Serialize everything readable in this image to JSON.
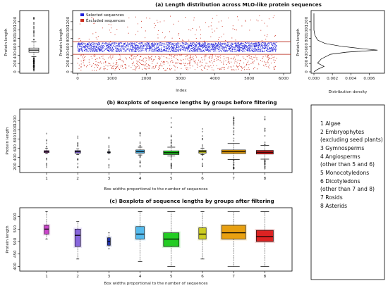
{
  "chart_data": [
    {
      "type": "boxplot",
      "panel": "a-left",
      "ylabel": "Protein length",
      "yticks": [
        0,
        200,
        400,
        600,
        800,
        1000,
        1200
      ],
      "ylim": [
        0,
        1400
      ],
      "box": {
        "whislo": 360,
        "q1": 470,
        "med": 520,
        "q3": 570,
        "whishi": 720
      }
    },
    {
      "type": "scatter",
      "panel": "a-center",
      "title": "(a) Length distribution across MLO-like protein sequences",
      "xlabel": "Index",
      "ylabel": "Protein length",
      "xticks": [
        0,
        1000,
        2000,
        3000,
        4000,
        5000,
        6000
      ],
      "yticks": [
        0,
        200,
        400,
        600,
        800,
        1000,
        1200
      ],
      "xlim": [
        0,
        6000
      ],
      "ylim": [
        0,
        1400
      ],
      "n_points": 5800,
      "legend_position": "top-left",
      "series": [
        {
          "name": "Selected sequences",
          "color": "#1f1fd8",
          "y_range": [
            420,
            720
          ]
        },
        {
          "name": "Excluded sequences",
          "color": "#cc2a1a",
          "y_range": [
            0,
            1350
          ]
        }
      ],
      "threshold_lines": [
        420,
        720
      ]
    },
    {
      "type": "line",
      "panel": "a-right",
      "xlabel": "Distribution density",
      "ylabel": "Protein length",
      "xticks": [
        0.0,
        0.002,
        0.004,
        0.006
      ],
      "yticks": [
        0,
        200,
        400,
        600,
        800,
        1000,
        1200
      ],
      "xlim": [
        0,
        0.0075
      ],
      "ylim": [
        0,
        1400
      ],
      "x": [
        0.0,
        0.0004,
        0.0011,
        0.0004,
        0.0008,
        0.0018,
        0.0035,
        0.0069,
        0.005,
        0.003,
        0.0012,
        0.0004,
        0.0001,
        0.0,
        0.0,
        0.0
      ],
      "y": [
        0,
        60,
        130,
        210,
        310,
        420,
        470,
        520,
        560,
        610,
        680,
        760,
        880,
        1000,
        1200,
        1400
      ]
    },
    {
      "type": "boxplot",
      "panel": "b",
      "title": "(b) Boxplots of sequence lengths by groups before filtering",
      "xlabel": "Box widths proportional to the number of sequences",
      "ylabel": "Protein length",
      "categories": [
        "1",
        "2",
        "3",
        "4",
        "5",
        "6",
        "7",
        "8"
      ],
      "yticks": [
        200,
        400,
        600,
        800,
        1000,
        1200
      ],
      "ylim": [
        100,
        1400
      ],
      "boxes": [
        {
          "whislo": 480,
          "q1": 500,
          "med": 520,
          "q3": 545,
          "whishi": 600,
          "width": 0.18,
          "color": "#cc66cc"
        },
        {
          "whislo": 460,
          "q1": 490,
          "med": 520,
          "q3": 545,
          "whishi": 580,
          "width": 0.2,
          "color": "#8866dd"
        },
        {
          "whislo": 480,
          "q1": 495,
          "med": 510,
          "q3": 520,
          "whishi": 540,
          "width": 0.1,
          "color": "#2233aa"
        },
        {
          "whislo": 450,
          "q1": 490,
          "med": 520,
          "q3": 560,
          "whishi": 620,
          "width": 0.3,
          "color": "#55bbee"
        },
        {
          "whislo": 430,
          "q1": 460,
          "med": 500,
          "q3": 540,
          "whishi": 620,
          "width": 0.55,
          "color": "#22cc22"
        },
        {
          "whislo": 460,
          "q1": 490,
          "med": 520,
          "q3": 550,
          "whishi": 600,
          "width": 0.26,
          "color": "#cccc22"
        },
        {
          "whislo": 350,
          "q1": 480,
          "med": 520,
          "q3": 560,
          "whishi": 700,
          "width": 0.85,
          "color": "#e8a010"
        },
        {
          "whislo": 360,
          "q1": 470,
          "med": 510,
          "q3": 550,
          "whishi": 660,
          "width": 0.6,
          "color": "#dd2222"
        }
      ]
    },
    {
      "type": "boxplot",
      "panel": "c",
      "title": "(c) Boxplots of sequence lengths by groups after filtering",
      "xlabel": "Box widths proportional to the number of sequences",
      "ylabel": "Protein length",
      "categories": [
        "1",
        "2",
        "3",
        "4",
        "5",
        "6",
        "7",
        "8"
      ],
      "yticks": [
        400,
        450,
        500,
        550,
        600
      ],
      "ylim": [
        390,
        630
      ],
      "boxes": [
        {
          "whislo": 510,
          "q1": 530,
          "med": 550,
          "q3": 565,
          "whishi": 620,
          "width": 0.16,
          "color": "#cc44cc"
        },
        {
          "whislo": 430,
          "q1": 480,
          "med": 525,
          "q3": 550,
          "whishi": 580,
          "width": 0.2,
          "color": "#8866dd"
        },
        {
          "whislo": 470,
          "q1": 485,
          "med": 500,
          "q3": 515,
          "whishi": 535,
          "width": 0.1,
          "color": "#2233aa"
        },
        {
          "whislo": 420,
          "q1": 510,
          "med": 530,
          "q3": 560,
          "whishi": 620,
          "width": 0.3,
          "color": "#55bbee"
        },
        {
          "whislo": 400,
          "q1": 480,
          "med": 510,
          "q3": 535,
          "whishi": 620,
          "width": 0.55,
          "color": "#22cc22"
        },
        {
          "whislo": 430,
          "q1": 510,
          "med": 530,
          "q3": 555,
          "whishi": 620,
          "width": 0.26,
          "color": "#cccc22"
        },
        {
          "whislo": 400,
          "q1": 510,
          "med": 535,
          "q3": 565,
          "whishi": 620,
          "width": 0.85,
          "color": "#e8a010"
        },
        {
          "whislo": 400,
          "q1": 500,
          "med": 520,
          "q3": 545,
          "whishi": 620,
          "width": 0.6,
          "color": "#dd2222"
        }
      ]
    }
  ],
  "legend_groups": {
    "items": [
      "1   Algae",
      "2   Embryophytes",
      "     (excluding seed plants)",
      "3   Gymnosperms",
      "4   Angiosperms",
      "     (other than 5 and 6)",
      "5   Monocotyledons",
      "6   Dicotyledons",
      "     (other than 7 and 8)",
      "7   Rosids",
      "8   Asterids"
    ]
  }
}
